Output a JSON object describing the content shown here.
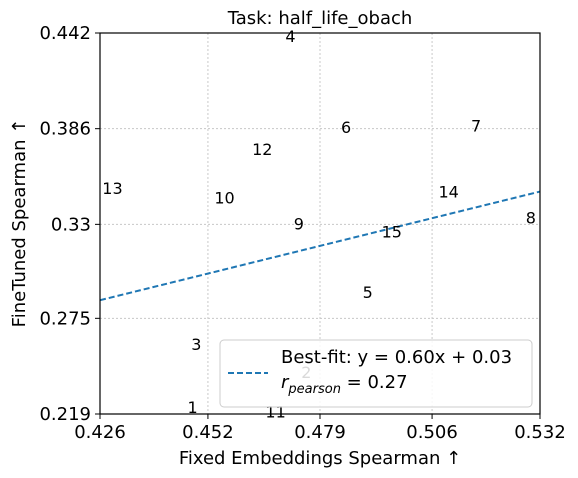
{
  "chart_data": {
    "type": "scatter",
    "title": "Task: half_life_obach",
    "xlabel": "Fixed Embeddings Spearman ↑",
    "ylabel": "FineTuned Spearman ↑",
    "xlim": [
      0.426,
      0.532
    ],
    "ylim": [
      0.219,
      0.442
    ],
    "xticks": [
      "0.426",
      "0.452",
      "0.479",
      "0.506",
      "0.532"
    ],
    "yticks": [
      "0.442",
      "0.386",
      "0.33",
      "0.275",
      "0.219"
    ],
    "xtick_values": [
      0.426,
      0.452,
      0.479,
      0.506,
      0.532
    ],
    "ytick_values": [
      0.442,
      0.386,
      0.33,
      0.275,
      0.219
    ],
    "grid": true,
    "points": [
      {
        "label": "1",
        "x": 0.4483,
        "y": 0.2226
      },
      {
        "label": "2",
        "x": 0.4757,
        "y": 0.243
      },
      {
        "label": "3",
        "x": 0.4492,
        "y": 0.2593
      },
      {
        "label": "4",
        "x": 0.4719,
        "y": 0.4397
      },
      {
        "label": "5",
        "x": 0.4905,
        "y": 0.2899
      },
      {
        "label": "6",
        "x": 0.4853,
        "y": 0.3863
      },
      {
        "label": "7",
        "x": 0.5166,
        "y": 0.3873
      },
      {
        "label": "8",
        "x": 0.5298,
        "y": 0.3333
      },
      {
        "label": "9",
        "x": 0.4739,
        "y": 0.3298
      },
      {
        "label": "10",
        "x": 0.456,
        "y": 0.345
      },
      {
        "label": "11",
        "x": 0.4683,
        "y": 0.2199
      },
      {
        "label": "12",
        "x": 0.4651,
        "y": 0.3735
      },
      {
        "label": "13",
        "x": 0.429,
        "y": 0.3508
      },
      {
        "label": "14",
        "x": 0.51,
        "y": 0.3485
      },
      {
        "label": "15",
        "x": 0.4963,
        "y": 0.3251
      }
    ],
    "fit_line": {
      "slope": 0.6,
      "intercept": 0.03,
      "x_range": [
        0.426,
        0.532
      ],
      "color": "#1f77b4",
      "style": "dashed"
    },
    "legend": {
      "position": "lower-right",
      "fit_label": "Best-fit: y = 0.60x + 0.03",
      "r_symbol": "r",
      "r_subscript": "pearson",
      "r_value": " = 0.27"
    }
  }
}
